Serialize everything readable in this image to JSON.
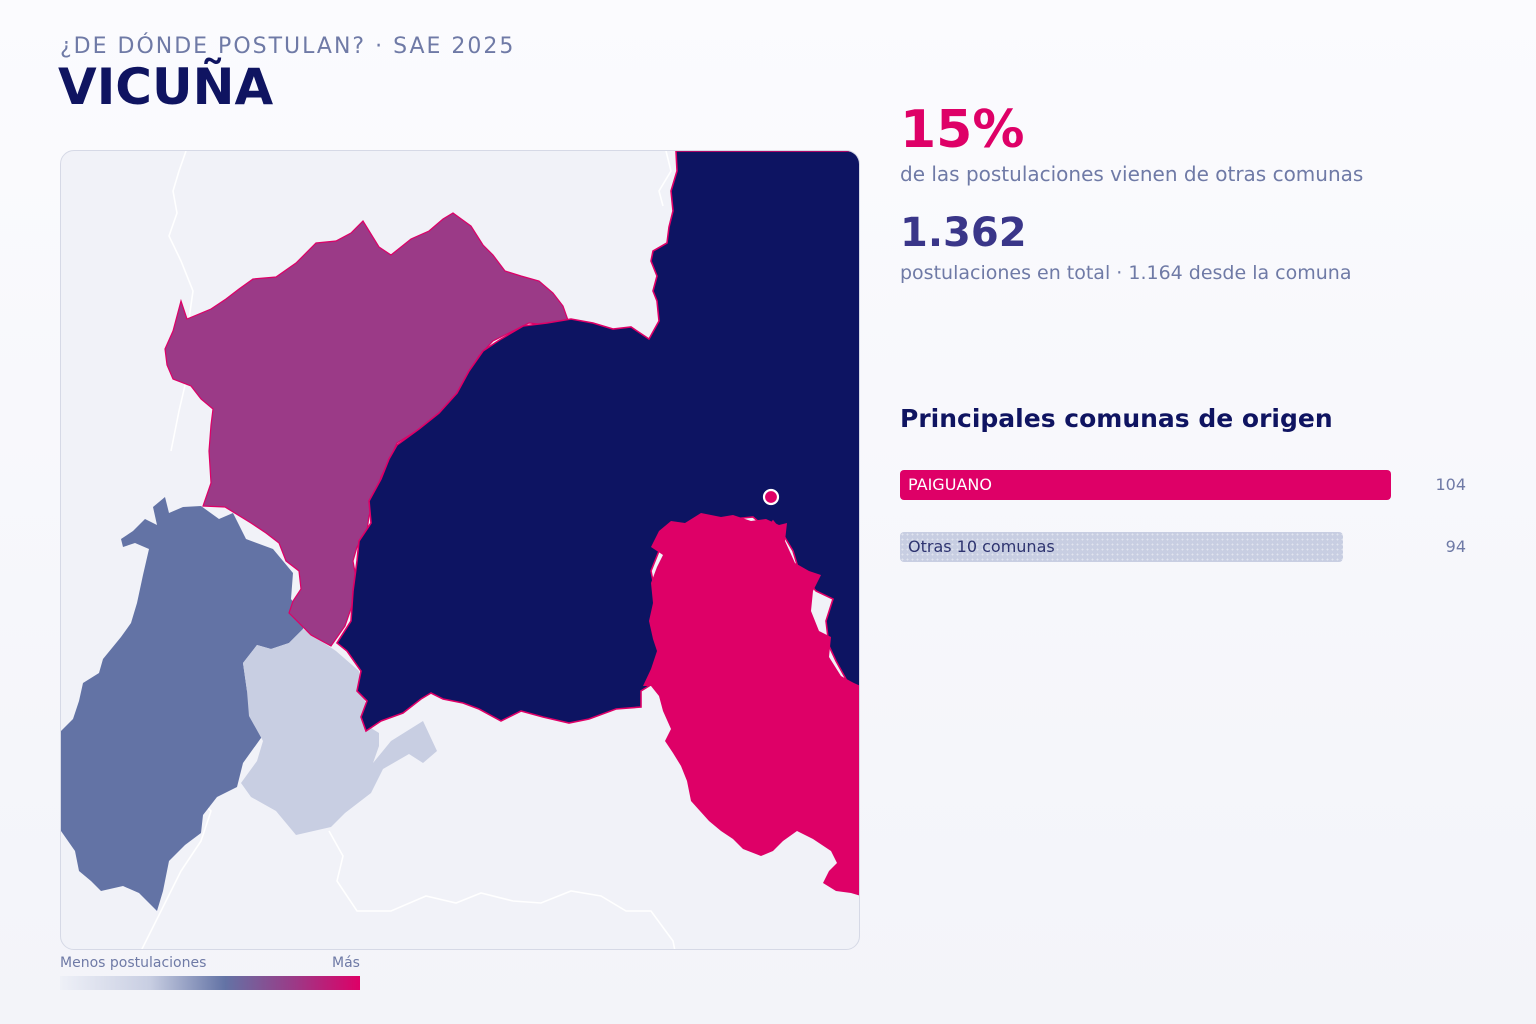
{
  "header": {
    "kicker": "¿DE DÓNDE POSTULAN? · SAE 2025",
    "title": "VICUÑA"
  },
  "stats": {
    "external_pct": "15%",
    "external_pct_caption": "de las postulaciones vienen de otras comunas",
    "total": "1.362",
    "total_caption": "postulaciones en total · 1.164 desde la comuna"
  },
  "ranking": {
    "title": "Principales comunas de origen",
    "items": [
      {
        "label": "PAIGUANO",
        "value": 104,
        "value_label": "104"
      },
      {
        "label": "Otras 10 comunas",
        "value": 94,
        "value_label": "94"
      }
    ],
    "max_value": 120
  },
  "legend": {
    "min_label": "Menos postulaciones",
    "max_label": "Más"
  },
  "colors": {
    "home_commune": "#0d1462",
    "highest": "#de0067",
    "high": "#9b3a87",
    "medium": "#6373a5",
    "low": "#c8cee2",
    "other_bar": "#c8cee2",
    "accent_title": "#0f1461"
  },
  "icons": {
    "school_marker": "circle-marker-icon"
  }
}
